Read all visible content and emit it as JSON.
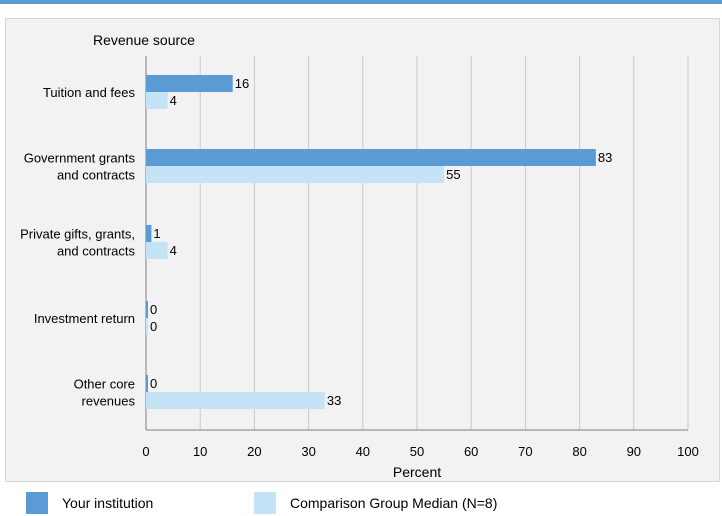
{
  "chart_data": {
    "type": "bar",
    "orientation": "horizontal",
    "ylabel": "Revenue source",
    "xlabel": "Percent",
    "xlim": [
      0,
      100
    ],
    "xticks": [
      0,
      10,
      20,
      30,
      40,
      50,
      60,
      70,
      80,
      90,
      100
    ],
    "grid": true,
    "legend_position": "bottom",
    "categories": [
      [
        "Tuition and fees"
      ],
      [
        "Government grants",
        "and contracts"
      ],
      [
        "Private gifts, grants,",
        "and contracts"
      ],
      [
        "Investment return"
      ],
      [
        "Other core",
        "revenues"
      ]
    ],
    "series": [
      {
        "name": "Your institution",
        "values": [
          16,
          83,
          1,
          0,
          0
        ],
        "color": "#5b9bd5"
      },
      {
        "name": "Comparison Group Median (N=8)",
        "values": [
          4,
          55,
          4,
          0,
          33
        ],
        "color": "#c5e3f7"
      }
    ]
  },
  "colors": {
    "top_rule": "#5b9bd5",
    "panel_bg": "#f2f2f2",
    "grid": "#c8c8c8"
  }
}
